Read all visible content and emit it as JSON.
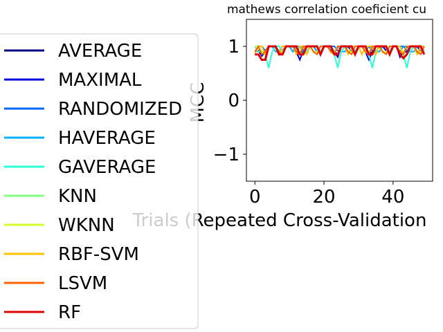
{
  "chart_data": {
    "type": "line",
    "title": "mathews correlation coeficient cu",
    "xlabel": "Trials (Repeated Cross-Validation",
    "ylabel": "MCC",
    "xlim": [
      -2.45,
      51.45
    ],
    "ylim": [
      -1.5,
      1.5
    ],
    "xticks": [
      0,
      20,
      40
    ],
    "xtick_labels": [
      "0",
      "20",
      "40"
    ],
    "yticks": [
      1,
      0,
      -1
    ],
    "ytick_labels": [
      "1",
      "0",
      "−1"
    ],
    "grid": false,
    "legend_position": "left, outside the plot",
    "series": [
      {
        "name": "AVERAGE",
        "color": "#000080",
        "x": [
          0,
          1,
          2,
          3,
          4,
          5,
          6,
          7,
          8,
          9,
          10,
          11,
          12,
          13,
          14,
          15,
          16,
          17,
          18,
          19,
          20,
          21,
          22,
          23,
          24,
          25,
          26,
          27,
          28,
          29,
          30,
          31,
          32,
          33,
          34,
          35,
          36,
          37,
          38,
          39,
          40,
          41,
          42,
          43,
          44,
          45,
          46,
          47,
          48,
          49
        ],
        "y": [
          0.9,
          0.92,
          0.85,
          0.9,
          1,
          1,
          1,
          0.9,
          0.92,
          1,
          1,
          1,
          0.9,
          0.85,
          0.92,
          1,
          1,
          1,
          0.9,
          1,
          1,
          1,
          0.92,
          0.9,
          0.85,
          1,
          1,
          1,
          0.9,
          1,
          1,
          1,
          0.9,
          0.85,
          0.9,
          1,
          1,
          1,
          0.92,
          0.9,
          1,
          1,
          0.85,
          0.9,
          0.9,
          1,
          1,
          1,
          0.9,
          1
        ]
      },
      {
        "name": "MAXIMAL",
        "color": "#0000e0",
        "x": [
          0,
          1,
          2,
          3,
          4,
          5,
          6,
          7,
          8,
          9,
          10,
          11,
          12,
          13,
          14,
          15,
          16,
          17,
          18,
          19,
          20,
          21,
          22,
          23,
          24,
          25,
          26,
          27,
          28,
          29,
          30,
          31,
          32,
          33,
          34,
          35,
          36,
          37,
          38,
          39,
          40,
          41,
          42,
          43,
          44,
          45,
          46,
          47,
          48,
          49
        ],
        "y": [
          0.9,
          0.92,
          0.82,
          0.9,
          1,
          1,
          1,
          0.9,
          0.92,
          1,
          1,
          1,
          0.9,
          0.75,
          0.92,
          1,
          1,
          1,
          0.9,
          1,
          1,
          1,
          0.92,
          0.9,
          0.8,
          1,
          1,
          1,
          0.9,
          1,
          1,
          1,
          0.9,
          0.75,
          0.9,
          1,
          1,
          1,
          0.92,
          0.9,
          1,
          1,
          0.8,
          0.9,
          0.9,
          1,
          1,
          1,
          0.9,
          1
        ]
      },
      {
        "name": "RANDOMIZED",
        "color": "#0066ff",
        "x": [
          0,
          1,
          2,
          3,
          4,
          5,
          6,
          7,
          8,
          9,
          10,
          11,
          12,
          13,
          14,
          15,
          16,
          17,
          18,
          19,
          20,
          21,
          22,
          23,
          24,
          25,
          26,
          27,
          28,
          29,
          30,
          31,
          32,
          33,
          34,
          35,
          36,
          37,
          38,
          39,
          40,
          41,
          42,
          43,
          44,
          45,
          46,
          47,
          48,
          49
        ],
        "y": [
          1,
          1,
          1,
          0.92,
          1,
          1,
          1,
          0.9,
          0.92,
          1,
          1,
          0.9,
          1,
          1,
          0.92,
          0.9,
          1,
          1,
          1,
          0.9,
          1,
          1,
          1,
          1,
          0.92,
          0.9,
          1,
          1,
          1,
          0.9,
          1,
          1,
          1,
          1,
          0.92,
          0.9,
          1,
          1,
          1,
          0.9,
          1,
          1,
          1,
          1,
          0.92,
          0.9,
          1,
          1,
          1,
          0.9
        ]
      },
      {
        "name": "HAVERAGE",
        "color": "#00b0ff",
        "x": [
          0,
          1,
          2,
          3,
          4,
          5,
          6,
          7,
          8,
          9,
          10,
          11,
          12,
          13,
          14,
          15,
          16,
          17,
          18,
          19,
          20,
          21,
          22,
          23,
          24,
          25,
          26,
          27,
          28,
          29,
          30,
          31,
          32,
          33,
          34,
          35,
          36,
          37,
          38,
          39,
          40,
          41,
          42,
          43,
          44,
          45,
          46,
          47,
          48,
          49
        ],
        "y": [
          1,
          1,
          0.9,
          0.9,
          1,
          1,
          0.9,
          0.9,
          1,
          1,
          1,
          0.9,
          1,
          1,
          0.9,
          0.9,
          1,
          1,
          0.9,
          0.9,
          1,
          1,
          1,
          0.9,
          1,
          0.9,
          0.9,
          1,
          1,
          0.9,
          1,
          1,
          0.9,
          1,
          1,
          0.9,
          0.9,
          1,
          1,
          0.9,
          1,
          1,
          0.9,
          1,
          1,
          0.9,
          0.9,
          1,
          1,
          0.9
        ]
      },
      {
        "name": "GAVERAGE",
        "color": "#2affd5",
        "x": [
          0,
          1,
          2,
          3,
          4,
          5,
          6,
          7,
          8,
          9,
          10,
          11,
          12,
          13,
          14,
          15,
          16,
          17,
          18,
          19,
          20,
          21,
          22,
          23,
          24,
          25,
          26,
          27,
          28,
          29,
          30,
          31,
          32,
          33,
          34,
          35,
          36,
          37,
          38,
          39,
          40,
          41,
          42,
          43,
          44,
          45,
          46,
          47,
          48,
          49
        ],
        "y": [
          1,
          0.9,
          0.9,
          0.85,
          0.6,
          0.9,
          1,
          1,
          0.9,
          1,
          1,
          1,
          0.9,
          0.9,
          0.85,
          0.9,
          1,
          1,
          1,
          0.9,
          1,
          1,
          0.9,
          0.85,
          0.6,
          0.9,
          1,
          1,
          1,
          0.9,
          1,
          1,
          0.9,
          0.85,
          0.6,
          0.9,
          1,
          1,
          1,
          0.9,
          1,
          1,
          0.9,
          0.85,
          0.6,
          0.9,
          1,
          1,
          1,
          0.9
        ]
      },
      {
        "name": "KNN",
        "color": "#80ff80",
        "x": [
          0,
          1,
          2,
          3,
          4,
          5,
          6,
          7,
          8,
          9,
          10,
          11,
          12,
          13,
          14,
          15,
          16,
          17,
          18,
          19,
          20,
          21,
          22,
          23,
          24,
          25,
          26,
          27,
          28,
          29,
          30,
          31,
          32,
          33,
          34,
          35,
          36,
          37,
          38,
          39,
          40,
          41,
          42,
          43,
          44,
          45,
          46,
          47,
          48,
          49
        ],
        "y": [
          1,
          1,
          0.9,
          0.9,
          1,
          1,
          1,
          0.9,
          0.9,
          1,
          1,
          1,
          0.9,
          0.9,
          1,
          1,
          1,
          0.9,
          0.9,
          1,
          1,
          1,
          0.9,
          0.9,
          1,
          1,
          1,
          0.9,
          0.9,
          1,
          1,
          1,
          0.9,
          0.9,
          1,
          1,
          1,
          0.9,
          0.9,
          1,
          1,
          1,
          0.9,
          0.9,
          1,
          1,
          1,
          0.9,
          0.9,
          1
        ]
      },
      {
        "name": "WKNN",
        "color": "#d5ff2a",
        "x": [
          0,
          1,
          2,
          3,
          4,
          5,
          6,
          7,
          8,
          9,
          10,
          11,
          12,
          13,
          14,
          15,
          16,
          17,
          18,
          19,
          20,
          21,
          22,
          23,
          24,
          25,
          26,
          27,
          28,
          29,
          30,
          31,
          32,
          33,
          34,
          35,
          36,
          37,
          38,
          39,
          40,
          41,
          42,
          43,
          44,
          45,
          46,
          47,
          48,
          49
        ],
        "y": [
          1,
          1,
          0.88,
          0.9,
          1,
          1,
          1,
          0.88,
          0.9,
          1,
          1,
          1,
          0.88,
          0.9,
          1,
          1,
          1,
          0.88,
          0.9,
          1,
          1,
          1,
          0.88,
          0.9,
          1,
          1,
          1,
          0.88,
          0.9,
          1,
          1,
          1,
          0.88,
          0.9,
          1,
          1,
          1,
          0.88,
          0.9,
          1,
          1,
          1,
          0.88,
          0.9,
          1,
          1,
          1,
          0.88,
          0.9,
          1
        ]
      },
      {
        "name": "RBF-SVM",
        "color": "#ffc000",
        "x": [
          0,
          1,
          2,
          3,
          4,
          5,
          6,
          7,
          8,
          9,
          10,
          11,
          12,
          13,
          14,
          15,
          16,
          17,
          18,
          19,
          20,
          21,
          22,
          23,
          24,
          25,
          26,
          27,
          28,
          29,
          30,
          31,
          32,
          33,
          34,
          35,
          36,
          37,
          38,
          39,
          40,
          41,
          42,
          43,
          44,
          45,
          46,
          47,
          48,
          49
        ],
        "y": [
          0.85,
          1,
          1,
          0.85,
          1,
          1,
          1,
          0.85,
          1,
          1,
          1,
          1,
          0.85,
          1,
          1,
          0.85,
          1,
          1,
          1,
          0.85,
          1,
          1,
          1,
          0.85,
          1,
          1,
          1,
          0.85,
          1,
          1,
          1,
          0.85,
          1,
          1,
          1,
          0.85,
          1,
          1,
          1,
          0.85,
          1,
          1,
          1,
          0.85,
          1,
          1,
          1,
          0.85,
          1,
          1
        ]
      },
      {
        "name": "LSVM",
        "color": "#ff6000",
        "x": [
          0,
          1,
          2,
          3,
          4,
          5,
          6,
          7,
          8,
          9,
          10,
          11,
          12,
          13,
          14,
          15,
          16,
          17,
          18,
          19,
          20,
          21,
          22,
          23,
          24,
          25,
          26,
          27,
          28,
          29,
          30,
          31,
          32,
          33,
          34,
          35,
          36,
          37,
          38,
          39,
          40,
          41,
          42,
          43,
          44,
          45,
          46,
          47,
          48,
          49
        ],
        "y": [
          0.9,
          1,
          0.85,
          0.9,
          1,
          1,
          1,
          0.9,
          0.85,
          1,
          1,
          1,
          0.9,
          0.85,
          1,
          1,
          1,
          0.9,
          0.85,
          1,
          1,
          1,
          0.9,
          0.85,
          1,
          1,
          1,
          0.9,
          0.85,
          1,
          1,
          1,
          0.9,
          0.85,
          1,
          1,
          1,
          0.9,
          0.85,
          1,
          1,
          1,
          0.9,
          0.85,
          1,
          1,
          1,
          0.9,
          0.85,
          1
        ]
      },
      {
        "name": "RF",
        "color": "#e00000",
        "x": [
          0,
          1,
          2,
          3,
          4,
          5,
          6,
          7,
          8,
          9,
          10,
          11,
          12,
          13,
          14,
          15,
          16,
          17,
          18,
          19,
          20,
          21,
          22,
          23,
          24,
          25,
          26,
          27,
          28,
          29,
          30,
          31,
          32,
          33,
          34,
          35,
          36,
          37,
          38,
          39,
          40,
          41,
          42,
          43,
          44,
          45,
          46,
          47,
          48,
          49
        ],
        "y": [
          0.85,
          0.85,
          0.75,
          0.75,
          1,
          1,
          1,
          0.85,
          0.85,
          1,
          1,
          1,
          1,
          0.85,
          0.85,
          1,
          1,
          1,
          1,
          0.85,
          1,
          1,
          1,
          0.85,
          0.85,
          1,
          1,
          1,
          1,
          0.85,
          1,
          1,
          1,
          0.85,
          0.85,
          1,
          1,
          1,
          1,
          0.85,
          1,
          1,
          0.85,
          0.78,
          0.85,
          1,
          1,
          1,
          1,
          0.85
        ]
      }
    ]
  }
}
